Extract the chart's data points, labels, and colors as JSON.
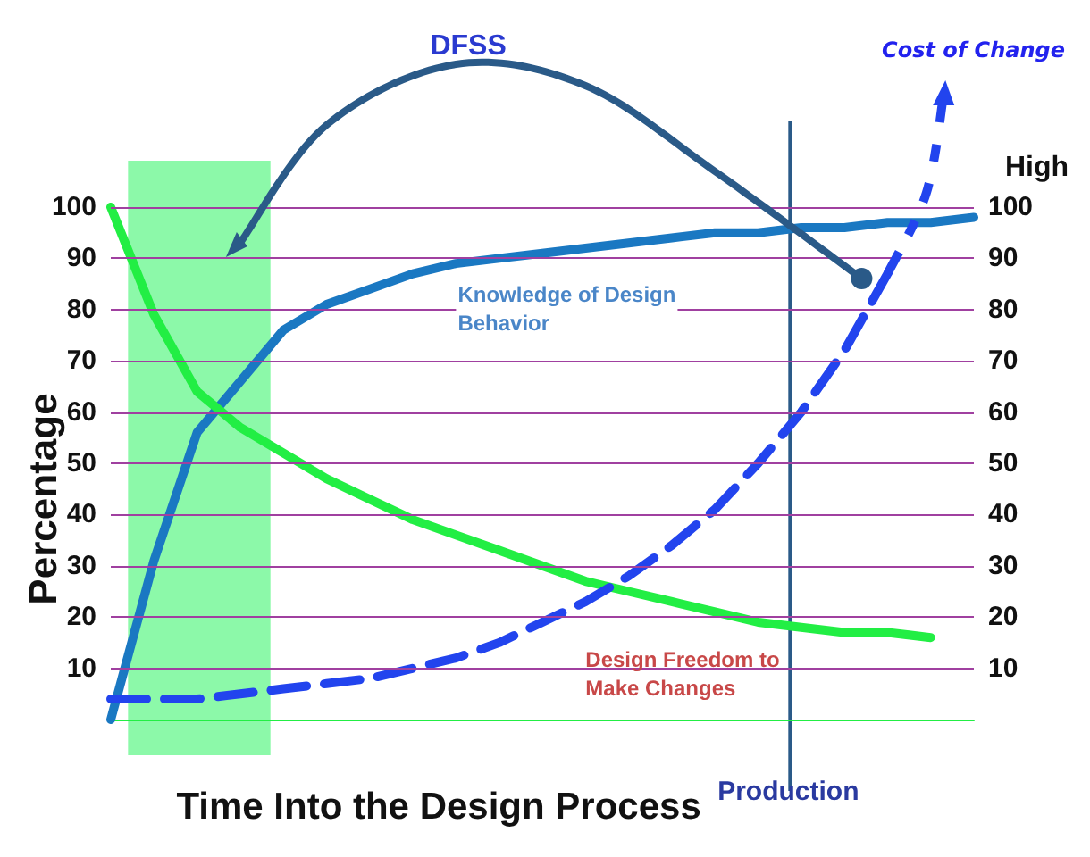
{
  "chart_data": {
    "type": "line",
    "xlabel": "Time Into the Design Process",
    "ylabel": "Percentage",
    "categories": [
      null,
      null,
      null,
      null,
      null,
      null,
      null,
      null,
      null,
      null,
      null,
      null,
      null,
      null,
      null,
      null,
      null,
      null,
      null,
      null,
      null
    ],
    "ylim": [
      0,
      100
    ],
    "yticks": [
      10,
      20,
      30,
      40,
      50,
      60,
      70,
      80,
      90,
      100
    ],
    "y2lim": [
      0,
      100
    ],
    "y2ticks": [
      10,
      20,
      30,
      40,
      50,
      60,
      70,
      80,
      90,
      100
    ],
    "grid": "y",
    "marker": "none",
    "series": [
      {
        "name": "Knowledge of Design Behavior",
        "color": "#1a78c2",
        "line_style": "solid",
        "values": [
          0,
          31,
          56,
          66,
          76,
          81,
          84,
          87,
          89,
          90,
          91,
          92,
          93,
          94,
          95,
          95,
          96,
          96,
          97,
          97,
          98
        ]
      },
      {
        "name": "Design Freedom to Make Changes",
        "color": "#22ee44",
        "line_style": "solid",
        "values": [
          100,
          79,
          64,
          57,
          52,
          47,
          43,
          39,
          36,
          33,
          30,
          27,
          25,
          23,
          21,
          19,
          18,
          17,
          17,
          16,
          null
        ]
      },
      {
        "name": "Cost of Change",
        "color": "#2244ee",
        "line_style": "dashed",
        "values": [
          4,
          4,
          4,
          5,
          6,
          7,
          8,
          10,
          12,
          15,
          19,
          23,
          28,
          34,
          41,
          50,
          60,
          72,
          87,
          null,
          null
        ]
      }
    ],
    "annotations": [
      "DFSS",
      "High",
      "Production"
    ]
  }
}
